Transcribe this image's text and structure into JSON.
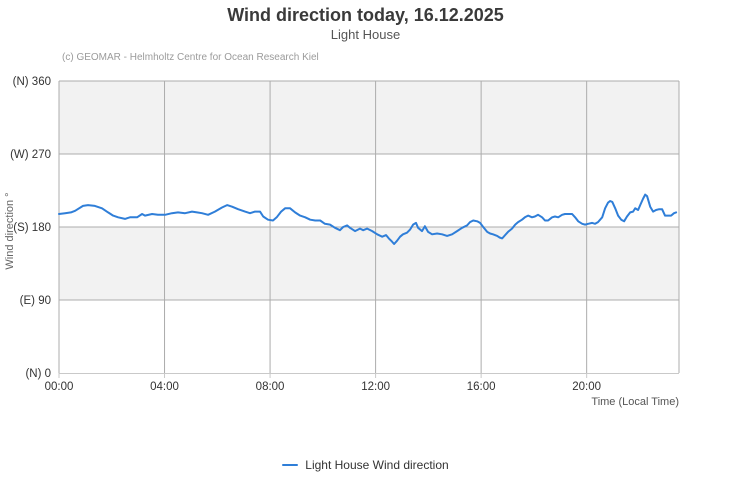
{
  "header": {
    "title": "Wind direction today, 16.12.2025",
    "subtitle": "Light House",
    "credit": "(c) GEOMAR - Helmholtz Centre for Ocean Research Kiel"
  },
  "chart_data": {
    "type": "line",
    "title": "Wind direction today, 16.12.2025",
    "subtitle": "Light House",
    "xlabel": "Time (Local Time)",
    "ylabel": "Wind direction °",
    "xlim": [
      0,
      23.5
    ],
    "ylim": [
      0,
      360
    ],
    "xticks": [
      {
        "value": 0,
        "label": "00:00"
      },
      {
        "value": 4,
        "label": "04:00"
      },
      {
        "value": 8,
        "label": "08:00"
      },
      {
        "value": 12,
        "label": "12:00"
      },
      {
        "value": 16,
        "label": "16:00"
      },
      {
        "value": 20,
        "label": "20:00"
      }
    ],
    "yticks": [
      {
        "value": 0,
        "label": "(N) 0"
      },
      {
        "value": 90,
        "label": "(E) 90"
      },
      {
        "value": 180,
        "label": "(S) 180"
      },
      {
        "value": 270,
        "label": "(W) 270"
      },
      {
        "value": 360,
        "label": "(N) 360"
      }
    ],
    "plot_bands": [
      [
        90,
        180
      ],
      [
        270,
        360
      ]
    ],
    "colors": {
      "band": "#f2f2f2",
      "grid": "#acacac",
      "axis_line": "#c9c9c9",
      "tick_label": "#333333",
      "series": "#2f7ed8"
    },
    "grid": true,
    "legend_position": "bottom-center",
    "series": [
      {
        "name": "Light House Wind direction",
        "color": "#2f7ed8",
        "points": [
          [
            0.0,
            196
          ],
          [
            0.23,
            197
          ],
          [
            0.45,
            198
          ],
          [
            0.61,
            200
          ],
          [
            0.91,
            206
          ],
          [
            1.1,
            207
          ],
          [
            1.36,
            206
          ],
          [
            1.63,
            203
          ],
          [
            1.86,
            198
          ],
          [
            2.05,
            194
          ],
          [
            2.24,
            192
          ],
          [
            2.5,
            190
          ],
          [
            2.69,
            192
          ],
          [
            2.96,
            192
          ],
          [
            3.15,
            196
          ],
          [
            3.26,
            194
          ],
          [
            3.53,
            196
          ],
          [
            3.75,
            195
          ],
          [
            4.02,
            195
          ],
          [
            4.28,
            197
          ],
          [
            4.51,
            198
          ],
          [
            4.78,
            197
          ],
          [
            5.04,
            199
          ],
          [
            5.23,
            198
          ],
          [
            5.42,
            197
          ],
          [
            5.65,
            195
          ],
          [
            5.91,
            199
          ],
          [
            6.18,
            204
          ],
          [
            6.37,
            207
          ],
          [
            6.56,
            205
          ],
          [
            6.79,
            202
          ],
          [
            7.05,
            199
          ],
          [
            7.24,
            197
          ],
          [
            7.43,
            199
          ],
          [
            7.62,
            199
          ],
          [
            7.74,
            193
          ],
          [
            7.92,
            189
          ],
          [
            8.11,
            188
          ],
          [
            8.25,
            192
          ],
          [
            8.42,
            199
          ],
          [
            8.57,
            203
          ],
          [
            8.76,
            203
          ],
          [
            8.95,
            198
          ],
          [
            9.14,
            194
          ],
          [
            9.33,
            192
          ],
          [
            9.52,
            189
          ],
          [
            9.71,
            188
          ],
          [
            9.9,
            188
          ],
          [
            10.08,
            184
          ],
          [
            10.27,
            183
          ],
          [
            10.46,
            179
          ],
          [
            10.65,
            176
          ],
          [
            10.77,
            180
          ],
          [
            10.92,
            182
          ],
          [
            11.03,
            179
          ],
          [
            11.22,
            175
          ],
          [
            11.41,
            178
          ],
          [
            11.53,
            176
          ],
          [
            11.68,
            178
          ],
          [
            11.87,
            175
          ],
          [
            12.06,
            171
          ],
          [
            12.25,
            168
          ],
          [
            12.4,
            170
          ],
          [
            12.5,
            166
          ],
          [
            12.62,
            162
          ],
          [
            12.7,
            159
          ],
          [
            12.81,
            163
          ],
          [
            12.93,
            168
          ],
          [
            13.04,
            171
          ],
          [
            13.19,
            173
          ],
          [
            13.31,
            177
          ],
          [
            13.42,
            183
          ],
          [
            13.53,
            185
          ],
          [
            13.61,
            179
          ],
          [
            13.76,
            175
          ],
          [
            13.87,
            181
          ],
          [
            13.99,
            174
          ],
          [
            14.14,
            171
          ],
          [
            14.33,
            172
          ],
          [
            14.52,
            171
          ],
          [
            14.71,
            169
          ],
          [
            14.9,
            171
          ],
          [
            15.09,
            175
          ],
          [
            15.28,
            179
          ],
          [
            15.47,
            182
          ],
          [
            15.58,
            186
          ],
          [
            15.7,
            188
          ],
          [
            15.85,
            187
          ],
          [
            15.96,
            185
          ],
          [
            16.08,
            180
          ],
          [
            16.23,
            174
          ],
          [
            16.34,
            172
          ],
          [
            16.45,
            171
          ],
          [
            16.61,
            169
          ],
          [
            16.7,
            167
          ],
          [
            16.8,
            166
          ],
          [
            16.91,
            170
          ],
          [
            17.02,
            174
          ],
          [
            17.17,
            178
          ],
          [
            17.29,
            183
          ],
          [
            17.4,
            186
          ],
          [
            17.55,
            189
          ],
          [
            17.66,
            192
          ],
          [
            17.78,
            194
          ],
          [
            17.93,
            192
          ],
          [
            18.04,
            193
          ],
          [
            18.16,
            195
          ],
          [
            18.31,
            192
          ],
          [
            18.42,
            188
          ],
          [
            18.54,
            188
          ],
          [
            18.69,
            192
          ],
          [
            18.8,
            193
          ],
          [
            18.92,
            192
          ],
          [
            19.07,
            195
          ],
          [
            19.18,
            196
          ],
          [
            19.3,
            196
          ],
          [
            19.45,
            196
          ],
          [
            19.56,
            192
          ],
          [
            19.68,
            187
          ],
          [
            19.83,
            184
          ],
          [
            19.94,
            183
          ],
          [
            20.06,
            184
          ],
          [
            20.21,
            185
          ],
          [
            20.32,
            184
          ],
          [
            20.43,
            186
          ],
          [
            20.59,
            192
          ],
          [
            20.7,
            203
          ],
          [
            20.81,
            210
          ],
          [
            20.89,
            212
          ],
          [
            20.97,
            211
          ],
          [
            21.08,
            203
          ],
          [
            21.19,
            194
          ],
          [
            21.31,
            189
          ],
          [
            21.42,
            187
          ],
          [
            21.53,
            193
          ],
          [
            21.65,
            198
          ],
          [
            21.76,
            199
          ],
          [
            21.84,
            203
          ],
          [
            21.95,
            201
          ],
          [
            22.03,
            207
          ],
          [
            22.14,
            215
          ],
          [
            22.22,
            220
          ],
          [
            22.29,
            218
          ],
          [
            22.41,
            205
          ],
          [
            22.52,
            199
          ],
          [
            22.63,
            201
          ],
          [
            22.75,
            202
          ],
          [
            22.86,
            202
          ],
          [
            22.97,
            194
          ],
          [
            23.09,
            194
          ],
          [
            23.2,
            194
          ],
          [
            23.31,
            197
          ],
          [
            23.39,
            198
          ]
        ]
      }
    ]
  },
  "legend": {
    "items": [
      {
        "label": "Light House Wind direction",
        "color": "#2f7ed8"
      }
    ]
  }
}
